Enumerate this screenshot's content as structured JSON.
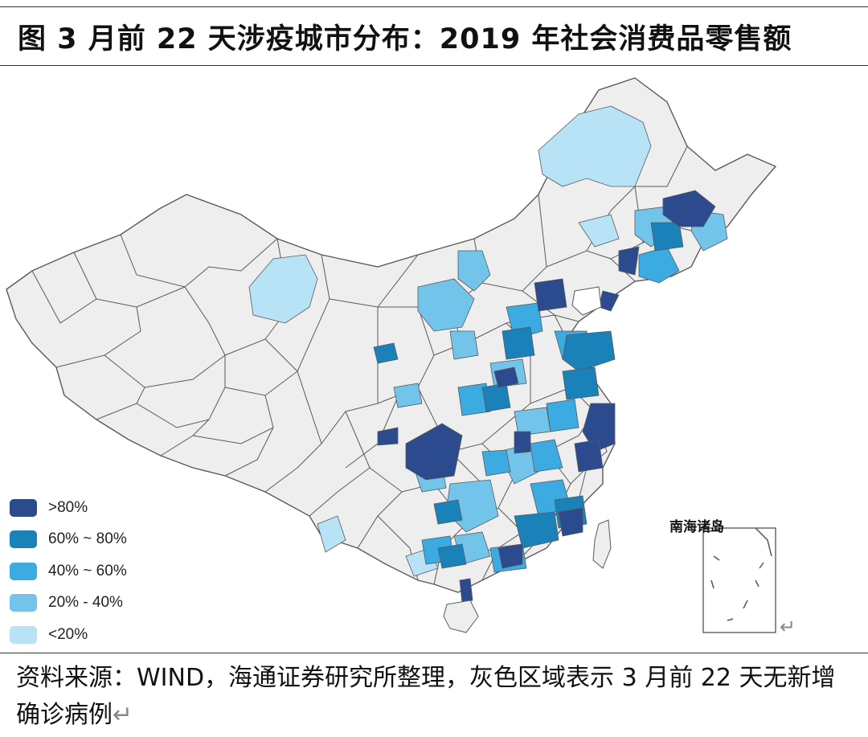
{
  "figure": {
    "title": "图  3 月前 22 天涉疫城市分布：2019 年社会消费品零售额"
  },
  "map": {
    "inset_label": "南海诸岛",
    "return_mark": "↵",
    "colors": {
      "none": "#eeeeee",
      "border": "#5a5a5a",
      "lt20": "#b8e2f5",
      "20_40": "#72c4ea",
      "40_60": "#3cabe2",
      "60_80": "#1a82b8",
      "gt80": "#2c4a8e"
    },
    "legend": [
      {
        "label": ">80%",
        "color": "#2c4a8e"
      },
      {
        "label": "60% ~ 80%",
        "color": "#1a82b8"
      },
      {
        "label": "40% ~ 60%",
        "color": "#3cabe2"
      },
      {
        "label": "20% - 40%",
        "color": "#72c4ea"
      },
      {
        "label": "<20%",
        "color": "#b8e2f5"
      }
    ]
  },
  "footer": {
    "source": "资料来源：WIND，海通证券研究所整理，灰色区域表示 3 月前 22 天无新增确诊病例",
    "return_mark": "↵"
  }
}
